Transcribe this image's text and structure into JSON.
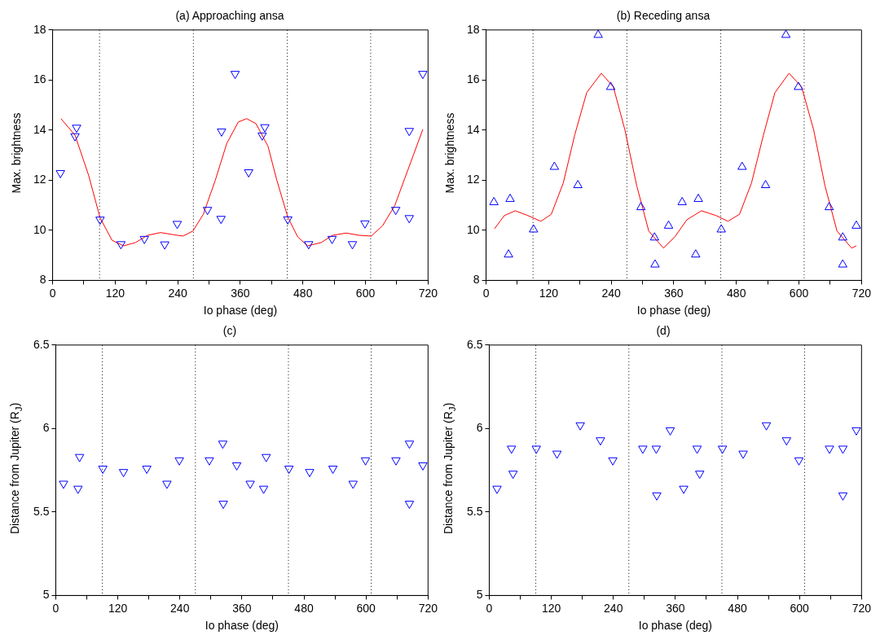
{
  "chart_data": [
    {
      "type": "scatter",
      "title": "(a) Approaching ansa",
      "xlabel": "Io phase (deg)",
      "ylabel": "Max. brightness",
      "marker": "triangle_down",
      "xlim": [
        0,
        720
      ],
      "xticks": [
        0,
        {
          "value": 60,
          "label": null
        },
        120,
        {
          "value": 180,
          "label": null
        },
        240,
        {
          "value": 300,
          "label": null
        },
        360,
        {
          "value": 420,
          "label": null
        },
        480,
        {
          "value": 540,
          "label": null
        },
        600,
        {
          "value": 660,
          "label": null
        },
        720
      ],
      "ylim": [
        8,
        18
      ],
      "yticks": [
        8,
        10,
        12,
        14,
        16,
        18
      ],
      "ref_lines": [
        {
          "axis": "x",
          "value": 90,
          "line_style": "dotted",
          "color": "#000000"
        },
        {
          "axis": "x",
          "value": 270,
          "line_style": "dotted",
          "color": "#000000"
        },
        {
          "axis": "x",
          "value": 450,
          "line_style": "dotted",
          "color": "#000000"
        },
        {
          "axis": "x",
          "value": 610,
          "line_style": "dotted",
          "color": "#000000"
        }
      ],
      "series": [
        {
          "color": "#0000ff",
          "x": [
            15,
            43,
            46,
            91,
            131,
            176,
            215,
            239,
            297,
            323,
            324,
            350,
            376,
            402,
            407,
            451,
            491,
            536,
            575,
            599,
            658,
            684,
            684,
            710
          ],
          "values": [
            12.29,
            13.76,
            14.1,
            10.43,
            9.45,
            9.66,
            9.44,
            10.26,
            10.82,
            10.46,
            13.95,
            16.25,
            12.32,
            13.79,
            14.12,
            10.44,
            9.45,
            9.66,
            9.45,
            10.28,
            10.82,
            10.49,
            13.97,
            16.25
          ]
        },
        {
          "type": "line",
          "marker": "none",
          "color": "#ff0000",
          "x": [
            16,
            43,
            69,
            91,
            114,
            136,
            159,
            182,
            207,
            233,
            250,
            269,
            289,
            312,
            334,
            356,
            372,
            390,
            413,
            430,
            451,
            470,
            489,
            515,
            537,
            563,
            588,
            611,
            633,
            656,
            684,
            710
          ],
          "values": [
            14.46,
            13.8,
            12.2,
            10.5,
            9.6,
            9.38,
            9.51,
            9.8,
            9.91,
            9.82,
            9.77,
            9.97,
            10.64,
            12.0,
            13.47,
            14.32,
            14.46,
            14.26,
            13.36,
            12.0,
            10.53,
            9.74,
            9.38,
            9.51,
            9.8,
            9.89,
            9.8,
            9.77,
            10.19,
            10.98,
            12.56,
            14.03
          ]
        }
      ]
    },
    {
      "type": "scatter",
      "title": "(b) Receding ansa",
      "xlabel": "Io phase (deg)",
      "ylabel": "Max. brightness",
      "marker": "triangle",
      "xlim": [
        0,
        720
      ],
      "xticks": [
        0,
        {
          "value": 60,
          "label": null
        },
        120,
        {
          "value": 180,
          "label": null
        },
        240,
        {
          "value": 300,
          "label": null
        },
        360,
        {
          "value": 420,
          "label": null
        },
        480,
        {
          "value": 540,
          "label": null
        },
        600,
        {
          "value": 660,
          "label": null
        },
        720
      ],
      "ylim": [
        8,
        18
      ],
      "yticks": [
        8,
        10,
        12,
        14,
        16,
        18
      ],
      "ref_lines": [
        {
          "axis": "x",
          "value": 90,
          "line_style": "dotted",
          "color": "#000000"
        },
        {
          "axis": "x",
          "value": 270,
          "line_style": "dotted",
          "color": "#000000"
        },
        {
          "axis": "x",
          "value": 450,
          "line_style": "dotted",
          "color": "#000000"
        },
        {
          "axis": "x",
          "value": 610,
          "line_style": "dotted",
          "color": "#000000"
        }
      ],
      "series": [
        {
          "color": "#0000ff",
          "x": [
            15,
            43,
            46,
            91,
            131,
            176,
            215,
            239,
            297,
            323,
            324,
            350,
            376,
            402,
            407,
            451,
            491,
            536,
            575,
            599,
            658,
            684,
            684,
            710
          ],
          "values": [
            11.12,
            9.03,
            11.25,
            10.03,
            12.53,
            11.8,
            17.8,
            15.72,
            10.92,
            9.71,
            8.63,
            10.18,
            11.12,
            9.03,
            11.25,
            10.03,
            12.53,
            11.8,
            17.8,
            15.72,
            10.92,
            9.71,
            8.63,
            10.18
          ]
        },
        {
          "type": "line",
          "marker": "none",
          "color": "#ff0000",
          "x": [
            16,
            35,
            56,
            80,
            105,
            125,
            148,
            170,
            193,
            221,
            244,
            266,
            289,
            312,
            340,
            362,
            385,
            413,
            441,
            464,
            486,
            509,
            532,
            554,
            581,
            605,
            628,
            650,
            673,
            701,
            710
          ],
          "values": [
            10.06,
            10.59,
            10.78,
            10.59,
            10.36,
            10.64,
            11.89,
            13.81,
            15.5,
            16.27,
            15.73,
            14.03,
            11.77,
            9.97,
            9.29,
            9.74,
            10.42,
            10.78,
            10.59,
            10.36,
            10.64,
            11.89,
            13.81,
            15.5,
            16.27,
            15.73,
            14.03,
            11.77,
            9.97,
            9.29,
            9.38
          ]
        }
      ]
    },
    {
      "type": "scatter",
      "title": "(c)",
      "xlabel": "Io phase (deg)",
      "ylabel": "Distance from Jupiter (R$_{J}$)",
      "marker": "triangle_down",
      "xlim": [
        0,
        720
      ],
      "xticks": [
        0,
        {
          "value": 60,
          "label": null
        },
        120,
        {
          "value": 180,
          "label": null
        },
        240,
        {
          "value": 300,
          "label": null
        },
        360,
        {
          "value": 420,
          "label": null
        },
        480,
        {
          "value": 540,
          "label": null
        },
        600,
        {
          "value": 660,
          "label": null
        },
        720
      ],
      "ylim": [
        5,
        6.5
      ],
      "yticks": [
        5,
        5.5,
        6,
        6.5
      ],
      "ref_lines": [
        {
          "axis": "x",
          "value": 90,
          "line_style": "dotted",
          "color": "#000000"
        },
        {
          "axis": "x",
          "value": 270,
          "line_style": "dotted",
          "color": "#000000"
        },
        {
          "axis": "x",
          "value": 450,
          "line_style": "dotted",
          "color": "#000000"
        },
        {
          "axis": "x",
          "value": 610,
          "line_style": "dotted",
          "color": "#000000"
        }
      ],
      "series": [
        {
          "color": "#0000ff",
          "x": [
            15,
            43,
            46,
            91,
            131,
            176,
            215,
            239,
            297,
            323,
            324,
            350,
            376,
            402,
            407,
            451,
            491,
            536,
            575,
            599,
            658,
            684,
            684,
            710
          ],
          "values": [
            5.67,
            5.64,
            5.83,
            5.76,
            5.74,
            5.76,
            5.67,
            5.81,
            5.81,
            5.91,
            5.55,
            5.78,
            5.67,
            5.64,
            5.83,
            5.76,
            5.74,
            5.76,
            5.67,
            5.81,
            5.81,
            5.55,
            5.91,
            5.78
          ]
        }
      ]
    },
    {
      "type": "scatter",
      "title": "(d)",
      "xlabel": "Io phase (deg)",
      "ylabel": "Distance from Jupiter (R$_{J}$)",
      "marker": "triangle_down",
      "xlim": [
        0,
        720
      ],
      "xticks": [
        0,
        {
          "value": 60,
          "label": null
        },
        120,
        {
          "value": 180,
          "label": null
        },
        240,
        {
          "value": 300,
          "label": null
        },
        360,
        {
          "value": 420,
          "label": null
        },
        480,
        {
          "value": 540,
          "label": null
        },
        600,
        {
          "value": 660,
          "label": null
        },
        720
      ],
      "ylim": [
        5,
        6.5
      ],
      "yticks": [
        5,
        5.5,
        6,
        6.5
      ],
      "ref_lines": [
        {
          "axis": "x",
          "value": 90,
          "line_style": "dotted",
          "color": "#000000"
        },
        {
          "axis": "x",
          "value": 270,
          "line_style": "dotted",
          "color": "#000000"
        },
        {
          "axis": "x",
          "value": 450,
          "line_style": "dotted",
          "color": "#000000"
        },
        {
          "axis": "x",
          "value": 610,
          "line_style": "dotted",
          "color": "#000000"
        }
      ],
      "series": [
        {
          "color": "#0000ff",
          "x": [
            15,
            43,
            46,
            91,
            131,
            176,
            215,
            239,
            297,
            323,
            324,
            350,
            376,
            402,
            407,
            451,
            491,
            536,
            575,
            599,
            658,
            684,
            684,
            710
          ],
          "values": [
            5.64,
            5.88,
            5.73,
            5.88,
            5.85,
            6.02,
            5.93,
            5.81,
            5.88,
            5.88,
            5.6,
            5.99,
            5.64,
            5.88,
            5.73,
            5.88,
            5.85,
            6.02,
            5.93,
            5.81,
            5.88,
            5.6,
            5.88,
            5.99
          ]
        }
      ]
    }
  ]
}
